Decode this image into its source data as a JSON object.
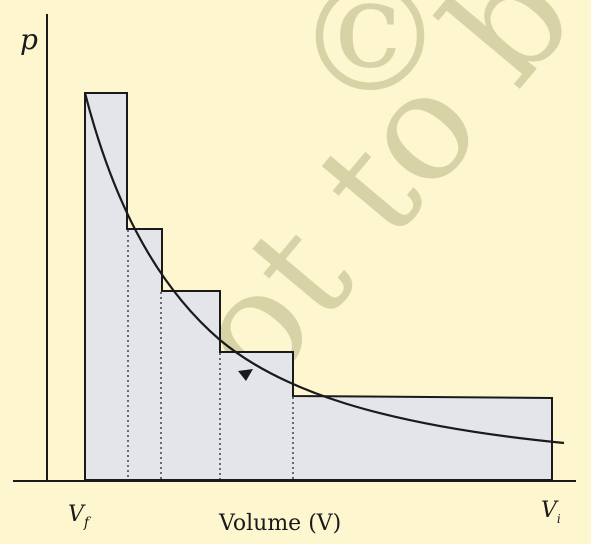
{
  "colors": {
    "background": "#fdf6cf",
    "fill": "#e3e5ea",
    "stroke": "#1a1a1a",
    "watermark": "#d8d3a6"
  },
  "axes": {
    "y_label": "p",
    "x_label": "Volume (V)",
    "x_tick_left": {
      "main": "V",
      "sub": "f"
    },
    "x_tick_right": {
      "main": "V",
      "sub": "i"
    }
  },
  "watermark": {
    "symbol": "©",
    "text": "not to be"
  },
  "curve": {
    "arrow": "pointing-left"
  }
}
